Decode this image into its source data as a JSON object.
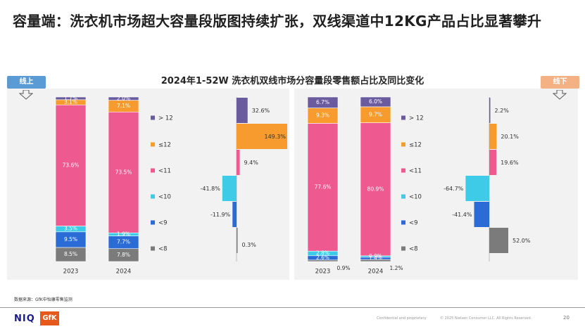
{
  "headline": "容量端：洗衣机市场超大容量段版图持续扩张，双线渠道中12KG产品占比显著攀升",
  "chart_title": "2024年1-52W 洗衣机双线市场分容量段零售额占比及同比变化",
  "source": "数据来源：GfK中怡康零售监测",
  "footer": {
    "niq_logo": "NIQ",
    "gfk_logo": "GfK",
    "confidential": "Confidential and proprietary",
    "copyright": "© 2025 Nielsen Consumer LLC. All Rights Reserved.",
    "page": "20"
  },
  "colors": {
    "gt12": "#6a5a9e",
    "le12": "#f79b2e",
    "lt11": "#ee5a8f",
    "lt10": "#3ecbe8",
    "lt9": "#2b6bd6",
    "lt8": "#7b7b7b",
    "online_tag": "#5b9bd5",
    "offline_tag": "#f4b183",
    "panel": "#f2f2f2"
  },
  "channels": {
    "online": {
      "label": "线上",
      "years": [
        "2023",
        "2024"
      ],
      "stack": [
        {
          "years": [
            "2023"
          ],
          "values": [
            1.7,
            3.1,
            73.6,
            3.5,
            9.5,
            8.5
          ]
        },
        {
          "years": [
            "2024"
          ],
          "values": [
            2.0,
            7.1,
            73.5,
            1.9,
            7.7,
            7.8
          ]
        }
      ],
      "legend": [
        "> 12",
        "≤12",
        "<11",
        "<10",
        "<9",
        "<8"
      ],
      "yoy": [
        32.6,
        149.3,
        9.4,
        -41.8,
        -11.9,
        0.3
      ]
    },
    "offline": {
      "label": "线下",
      "years": [
        "2023",
        "2024"
      ],
      "stack": [
        {
          "years": [
            "2023"
          ],
          "values": [
            6.7,
            9.3,
            77.6,
            2.8,
            2.6,
            0.9
          ]
        },
        {
          "years": [
            "2024"
          ],
          "values": [
            6.0,
            9.7,
            80.9,
            0.9,
            1.4,
            1.2
          ]
        }
      ],
      "legend": [
        "> 12",
        "≤12",
        "<11",
        "<10",
        "<9",
        "<8"
      ],
      "yoy": [
        2.2,
        20.1,
        19.6,
        -64.7,
        -41.4,
        52.0
      ]
    }
  },
  "chart_data": [
    {
      "type": "bar",
      "title": "2024年1-52W 洗衣机双线市场分容量段零售额占比及同比变化",
      "panel": "线上",
      "stacked": true,
      "unit": "%",
      "categories": [
        "2023",
        "2024"
      ],
      "series": [
        {
          "name": "> 12",
          "values": [
            1.7,
            2.0
          ]
        },
        {
          "name": "≤12",
          "values": [
            3.1,
            7.1
          ]
        },
        {
          "name": "<11",
          "values": [
            73.6,
            73.5
          ]
        },
        {
          "name": "<10",
          "values": [
            3.5,
            1.9
          ]
        },
        {
          "name": "<9",
          "values": [
            9.5,
            7.7
          ]
        },
        {
          "name": "<8",
          "values": [
            8.5,
            7.8
          ]
        }
      ]
    },
    {
      "type": "bar",
      "panel": "线上",
      "orientation": "horizontal-waterfall",
      "unit": "%",
      "categories": [
        "> 12",
        "≤12",
        "<11",
        "<10",
        "<9",
        "<8"
      ],
      "values": [
        32.6,
        149.3,
        9.4,
        -41.8,
        -11.9,
        0.3
      ]
    },
    {
      "type": "bar",
      "panel": "线下",
      "stacked": true,
      "unit": "%",
      "categories": [
        "2023",
        "2024"
      ],
      "series": [
        {
          "name": "> 12",
          "values": [
            6.7,
            6.0
          ]
        },
        {
          "name": "≤12",
          "values": [
            9.3,
            9.7
          ]
        },
        {
          "name": "<11",
          "values": [
            77.6,
            80.9
          ]
        },
        {
          "name": "<10",
          "values": [
            2.8,
            0.9
          ]
        },
        {
          "name": "<9",
          "values": [
            2.6,
            1.4
          ]
        },
        {
          "name": "<8",
          "values": [
            0.9,
            1.2
          ]
        }
      ]
    },
    {
      "type": "bar",
      "panel": "线下",
      "orientation": "horizontal-waterfall",
      "unit": "%",
      "categories": [
        "> 12",
        "≤12",
        "<11",
        "<10",
        "<9",
        "<8"
      ],
      "values": [
        2.2,
        20.1,
        19.6,
        -64.7,
        -41.4,
        52.0
      ]
    }
  ]
}
